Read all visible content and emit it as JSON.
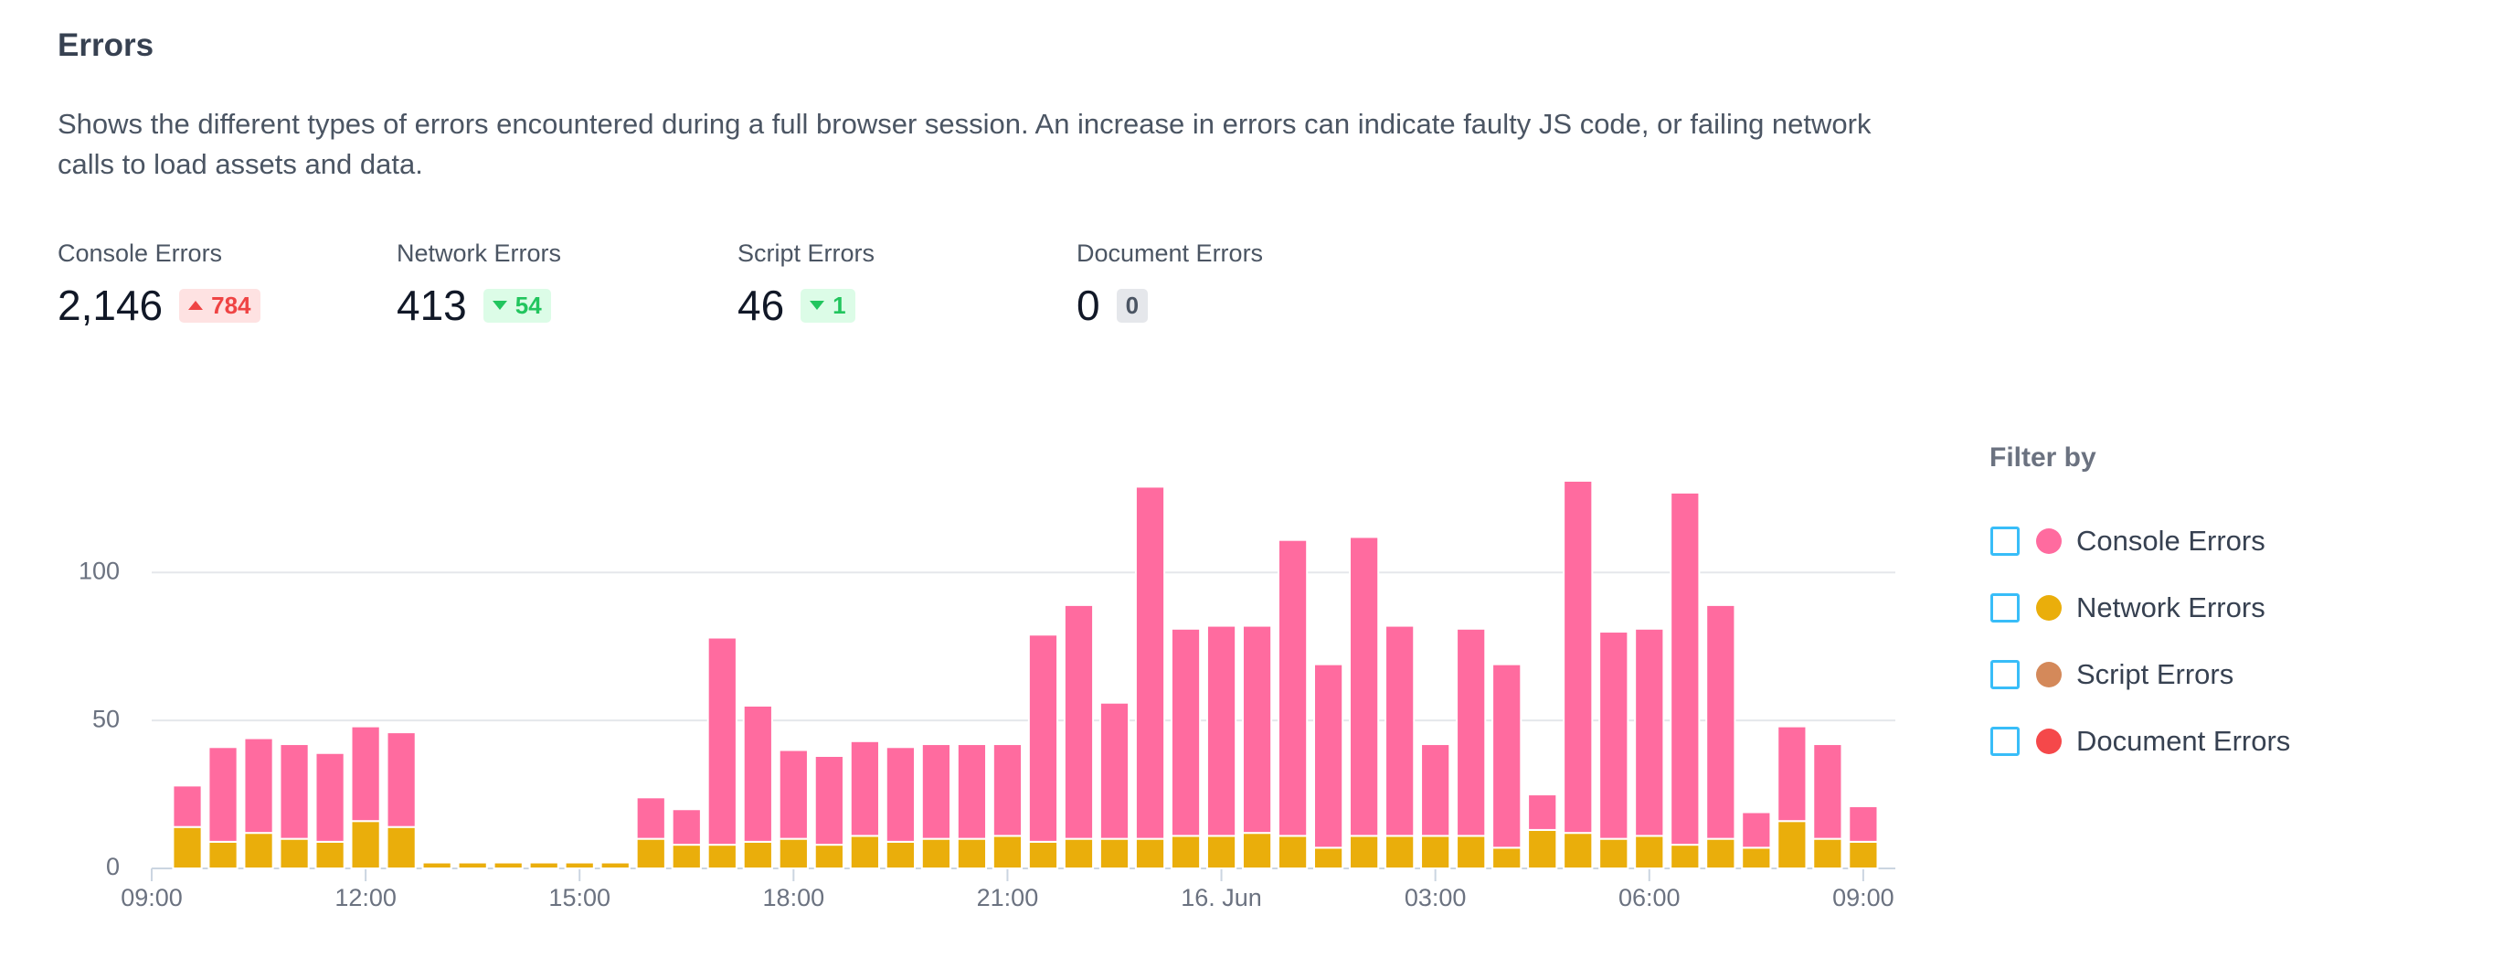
{
  "header": {
    "title": "Errors",
    "description": "Shows the different types of errors encountered during a full browser session. An increase in errors can indicate faulty JS code, or failing network calls to load assets and data."
  },
  "stats": [
    {
      "label": "Console Errors",
      "value": "2,146",
      "change": "784",
      "direction": "up"
    },
    {
      "label": "Network Errors",
      "value": "413",
      "change": "54",
      "direction": "down"
    },
    {
      "label": "Script Errors",
      "value": "46",
      "change": "1",
      "direction": "down"
    },
    {
      "label": "Document Errors",
      "value": "0",
      "change": "0",
      "direction": "flat"
    }
  ],
  "filter": {
    "title": "Filter by",
    "items": [
      {
        "name": "Console Errors",
        "color": "#ff6b9f"
      },
      {
        "name": "Network Errors",
        "color": "#eaae0b"
      },
      {
        "name": "Script Errors",
        "color": "#d4895a"
      },
      {
        "name": "Document Errors",
        "color": "#f5484a"
      }
    ]
  },
  "chart_data": {
    "type": "stacked-bar",
    "x": [
      9.5,
      10,
      10.5,
      11,
      11.5,
      12,
      12.5,
      13,
      13.5,
      14,
      14.5,
      15,
      15.5,
      16,
      16.5,
      17,
      17.5,
      18,
      18.5,
      19,
      19.5,
      20,
      20.5,
      21,
      21.5,
      22,
      22.5,
      23,
      23.5,
      24,
      24.5,
      25,
      25.5,
      26,
      26.5,
      27,
      27.5,
      28,
      28.5,
      29,
      29.5,
      30,
      30.5,
      31,
      31.5,
      32,
      32.5,
      33
    ],
    "series": [
      {
        "name": "Network Errors",
        "color": "#eaae0b",
        "values": [
          14,
          9,
          12,
          10,
          9,
          16,
          14,
          2,
          2,
          2,
          2,
          2,
          2,
          10,
          8,
          8,
          9,
          10,
          8,
          11,
          9,
          10,
          10,
          11,
          9,
          10,
          10,
          10,
          11,
          11,
          12,
          11,
          7,
          11,
          11,
          11,
          11,
          7,
          13,
          12,
          10,
          11,
          8,
          10,
          7,
          16,
          10,
          9
        ]
      },
      {
        "name": "Console Errors",
        "color": "#ff6b9f",
        "values": [
          14,
          32,
          32,
          32,
          30,
          32,
          32,
          0,
          0,
          0,
          0,
          0,
          0,
          14,
          12,
          70,
          46,
          30,
          30,
          32,
          32,
          32,
          32,
          31,
          70,
          79,
          46,
          119,
          70,
          71,
          70,
          100,
          62,
          101,
          71,
          31,
          70,
          62,
          12,
          119,
          70,
          70,
          119,
          79,
          12,
          32,
          32,
          12
        ]
      }
    ],
    "xlim": [
      9,
      33.45
    ],
    "xticks": [
      {
        "value": 9,
        "label": "09:00"
      },
      {
        "value": 12,
        "label": "12:00"
      },
      {
        "value": 15,
        "label": "15:00"
      },
      {
        "value": 18,
        "label": "18:00"
      },
      {
        "value": 21,
        "label": "21:00"
      },
      {
        "value": 24,
        "label": "16. Jun"
      },
      {
        "value": 27,
        "label": "03:00"
      },
      {
        "value": 30,
        "label": "06:00"
      },
      {
        "value": 33,
        "label": "09:00"
      }
    ],
    "ylim": [
      0,
      135
    ],
    "yticks": [
      0,
      50,
      100
    ],
    "grid": true
  }
}
